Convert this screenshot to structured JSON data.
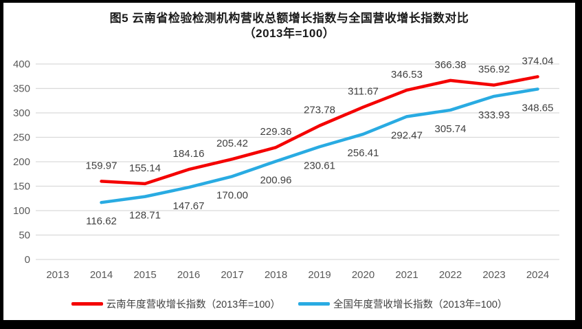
{
  "title": {
    "line1": "图5  云南省检验检测机构营收总额增长指数与全国营收增长指数对比",
    "line2": "（2013年=100）"
  },
  "colors": {
    "yunnan": "#f40000",
    "national": "#29abe2",
    "gridline": "#d9d9d9",
    "axis_label": "#595959",
    "data_label": "#404040",
    "frame": "#000000",
    "background": "#ffffff"
  },
  "chart_data": {
    "type": "line",
    "categories": [
      "2013",
      "2014",
      "2015",
      "2016",
      "2017",
      "2018",
      "2019",
      "2020",
      "2021",
      "2022",
      "2023",
      "2024"
    ],
    "series": [
      {
        "name": "云南年度营收增长指数（2013年=100）",
        "color_key": "yunnan",
        "values": [
          null,
          159.97,
          155.14,
          184.16,
          205.42,
          229.36,
          273.78,
          311.67,
          346.53,
          366.38,
          356.92,
          374.04
        ],
        "labels": [
          "",
          "159.97",
          "155.14",
          "184.16",
          "205.42",
          "229.36",
          "273.78",
          "311.67",
          "346.53",
          "366.38",
          "356.92",
          "374.04"
        ],
        "label_position": "above"
      },
      {
        "name": "全国年度营收增长指数（2013年=100）",
        "color_key": "national",
        "values": [
          null,
          116.62,
          128.71,
          147.67,
          170.0,
          200.96,
          230.61,
          256.41,
          292.47,
          305.74,
          333.93,
          348.65
        ],
        "labels": [
          "",
          "116.62",
          "128.71",
          "147.67",
          "170.00",
          "200.96",
          "230.61",
          "256.41",
          "292.47",
          "305.74",
          "333.93",
          "348.65"
        ],
        "label_position": "below"
      }
    ],
    "title": "图5  云南省检验检测机构营收总额增长指数与全国营收增长指数对比（2013年=100）",
    "xlabel": "",
    "ylabel": "",
    "ylim": [
      0,
      400
    ],
    "yticks": [
      0,
      50,
      100,
      150,
      200,
      250,
      300,
      350,
      400
    ],
    "grid": true,
    "legend_position": "bottom"
  },
  "legend": {
    "items": [
      {
        "label": "云南年度营收增长指数（2013年=100）",
        "color_key": "yunnan"
      },
      {
        "label": "全国年度营收增长指数（2013年=100）",
        "color_key": "national"
      }
    ]
  }
}
